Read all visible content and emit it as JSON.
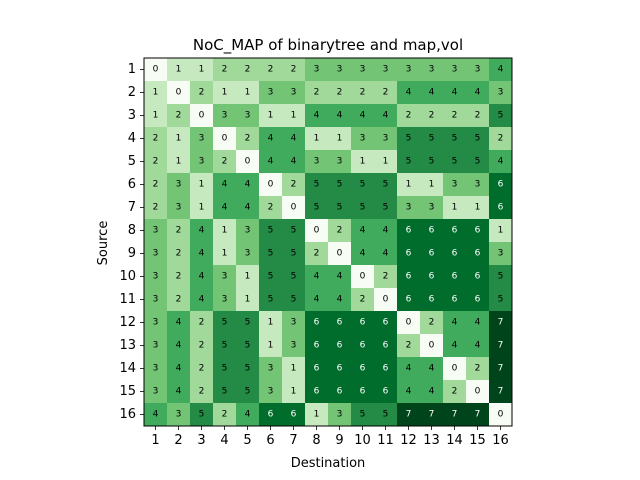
{
  "chart_data": {
    "type": "heatmap",
    "title": "NoC_MAP of binarytree and map,vol",
    "xlabel": "Destination",
    "ylabel": "Source",
    "x_categories": [
      "1",
      "2",
      "3",
      "4",
      "5",
      "6",
      "7",
      "8",
      "9",
      "10",
      "11",
      "12",
      "13",
      "14",
      "15",
      "16"
    ],
    "y_categories": [
      "1",
      "2",
      "3",
      "4",
      "5",
      "6",
      "7",
      "8",
      "9",
      "10",
      "11",
      "12",
      "13",
      "14",
      "15",
      "16"
    ],
    "colormap": "Greens",
    "vmin": 0,
    "vmax": 7,
    "values": [
      [
        0,
        1,
        1,
        2,
        2,
        2,
        2,
        3,
        3,
        3,
        3,
        3,
        3,
        3,
        3,
        4
      ],
      [
        1,
        0,
        2,
        1,
        1,
        3,
        3,
        2,
        2,
        2,
        2,
        4,
        4,
        4,
        4,
        3
      ],
      [
        1,
        2,
        0,
        3,
        3,
        1,
        1,
        4,
        4,
        4,
        4,
        2,
        2,
        2,
        2,
        5
      ],
      [
        2,
        1,
        3,
        0,
        2,
        4,
        4,
        1,
        1,
        3,
        3,
        5,
        5,
        5,
        5,
        2
      ],
      [
        2,
        1,
        3,
        2,
        0,
        4,
        4,
        3,
        3,
        1,
        1,
        5,
        5,
        5,
        5,
        4
      ],
      [
        2,
        3,
        1,
        4,
        4,
        0,
        2,
        5,
        5,
        5,
        5,
        1,
        1,
        3,
        3,
        6
      ],
      [
        2,
        3,
        1,
        4,
        4,
        2,
        0,
        5,
        5,
        5,
        5,
        3,
        3,
        1,
        1,
        6
      ],
      [
        3,
        2,
        4,
        1,
        3,
        5,
        5,
        0,
        2,
        4,
        4,
        6,
        6,
        6,
        6,
        1
      ],
      [
        3,
        2,
        4,
        1,
        3,
        5,
        5,
        2,
        0,
        4,
        4,
        6,
        6,
        6,
        6,
        3
      ],
      [
        3,
        2,
        4,
        3,
        1,
        5,
        5,
        4,
        4,
        0,
        2,
        6,
        6,
        6,
        6,
        5
      ],
      [
        3,
        2,
        4,
        3,
        1,
        5,
        5,
        4,
        4,
        2,
        0,
        6,
        6,
        6,
        6,
        5
      ],
      [
        3,
        4,
        2,
        5,
        5,
        1,
        3,
        6,
        6,
        6,
        6,
        0,
        2,
        4,
        4,
        7
      ],
      [
        3,
        4,
        2,
        5,
        5,
        1,
        3,
        6,
        6,
        6,
        6,
        2,
        0,
        4,
        4,
        7
      ],
      [
        3,
        4,
        2,
        5,
        5,
        3,
        1,
        6,
        6,
        6,
        6,
        4,
        4,
        0,
        2,
        7
      ],
      [
        3,
        4,
        2,
        5,
        5,
        3,
        1,
        6,
        6,
        6,
        6,
        4,
        4,
        2,
        0,
        7
      ],
      [
        4,
        3,
        5,
        2,
        4,
        6,
        6,
        1,
        3,
        5,
        5,
        7,
        7,
        7,
        7,
        0
      ]
    ],
    "palette": [
      "#f7fcf5",
      "#c7e9c0",
      "#a1d99b",
      "#74c476",
      "#41ab5d",
      "#238b45",
      "#006d2c",
      "#00441b"
    ]
  }
}
